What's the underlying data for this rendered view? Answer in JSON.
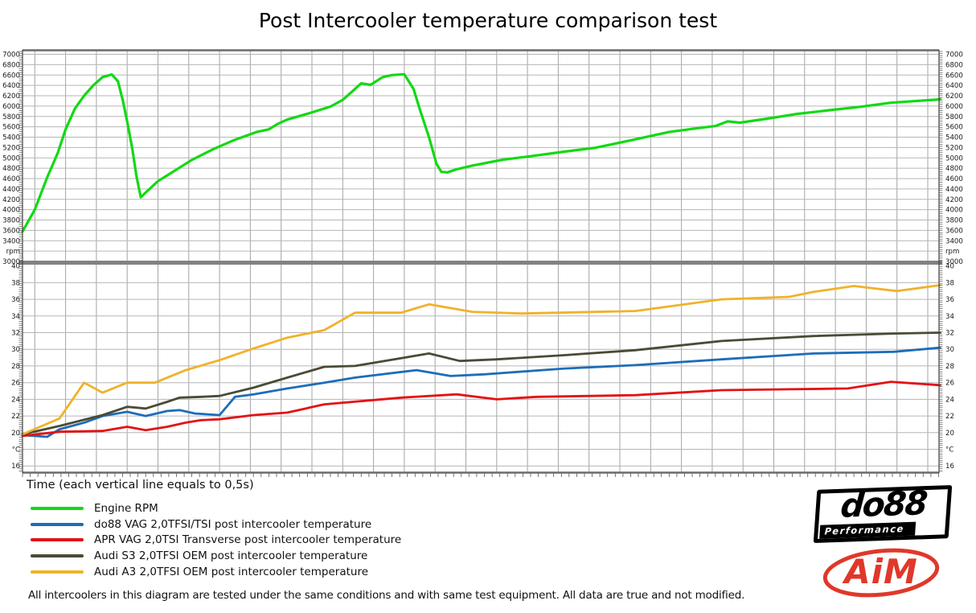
{
  "title": "Post Intercooler temperature comparison test",
  "x_axis_label": "Time (each vertical line equals to 0,5s)",
  "footer_note": "All intercoolers in this diagram are tested under the same conditions and with same test equipment. All data are true and not modified.",
  "logos": {
    "do88_text": "do88",
    "do88_subtext": "Performance",
    "aim_text": "AiM"
  },
  "legend": [
    {
      "label": "Engine RPM",
      "color": "#12D912"
    },
    {
      "label": "do88 VAG 2,0TFSI/TSI post intercooler temperature",
      "color": "#1D6DB8"
    },
    {
      "label": "APR VAG 2,0TSI Transverse post intercooler temperature",
      "color": "#E31114"
    },
    {
      "label": "Audi S3 2,0TFSI OEM post intercooler temperature",
      "color": "#4B4A35"
    },
    {
      "label": "Audi A3 2,0TFSI OEM post intercooler temperature",
      "color": "#F0B229"
    }
  ],
  "chart_data": {
    "type": "line",
    "title": "Post Intercooler temperature comparison test",
    "xlabel": "Time (each vertical line equals to 0,5s)",
    "x_unit": "s",
    "x_range": [
      0,
      14.9
    ],
    "x_gridline_interval_s": 0.5,
    "grid": true,
    "legend_position": "bottom-left",
    "panels": [
      {
        "id": "rpm",
        "ylabel": "rpm",
        "ylim": [
          3000,
          7070
        ],
        "ticks": [
          [
            7000,
            "7000"
          ],
          [
            6800,
            "6800"
          ],
          [
            6600,
            "6600"
          ],
          [
            6400,
            "6400"
          ],
          [
            6200,
            "6200"
          ],
          [
            6000,
            "6000"
          ],
          [
            5800,
            "5800"
          ],
          [
            5600,
            "5600"
          ],
          [
            5400,
            "5400"
          ],
          [
            5200,
            "5200"
          ],
          [
            5000,
            "5000"
          ],
          [
            4800,
            "4800"
          ],
          [
            4600,
            "4600"
          ],
          [
            4400,
            "4400"
          ],
          [
            4200,
            "4200"
          ],
          [
            4000,
            "4000"
          ],
          [
            3800,
            "3800"
          ],
          [
            3600,
            "3600"
          ],
          [
            3400,
            "3400"
          ],
          [
            3200,
            "rpm"
          ],
          [
            3000,
            "3000"
          ]
        ]
      },
      {
        "id": "temp",
        "ylabel": "°C",
        "ylim": [
          15.15,
          40.55
        ],
        "ticks": [
          [
            40,
            "40"
          ],
          [
            38,
            "38"
          ],
          [
            36,
            "36"
          ],
          [
            34,
            "34"
          ],
          [
            32,
            "32"
          ],
          [
            30,
            "30"
          ],
          [
            28,
            "28"
          ],
          [
            26,
            "26"
          ],
          [
            24,
            "24"
          ],
          [
            22,
            "22"
          ],
          [
            20,
            "20"
          ],
          [
            18,
            "°C"
          ],
          [
            16,
            "16"
          ]
        ]
      }
    ],
    "series": [
      {
        "name": "Engine RPM",
        "panel": "rpm",
        "color": "#12D912",
        "width": 3.2,
        "points": [
          [
            0,
            3580
          ],
          [
            0.2,
            4000
          ],
          [
            0.4,
            4620
          ],
          [
            0.57,
            5090
          ],
          [
            0.7,
            5550
          ],
          [
            0.85,
            5950
          ],
          [
            1.0,
            6200
          ],
          [
            1.15,
            6400
          ],
          [
            1.3,
            6560
          ],
          [
            1.45,
            6610
          ],
          [
            1.55,
            6480
          ],
          [
            1.63,
            6100
          ],
          [
            1.7,
            5700
          ],
          [
            1.78,
            5200
          ],
          [
            1.85,
            4650
          ],
          [
            1.92,
            4240
          ],
          [
            2.0,
            4330
          ],
          [
            2.2,
            4550
          ],
          [
            2.4,
            4700
          ],
          [
            2.75,
            4960
          ],
          [
            3.1,
            5170
          ],
          [
            3.45,
            5350
          ],
          [
            3.8,
            5500
          ],
          [
            4.0,
            5550
          ],
          [
            4.15,
            5660
          ],
          [
            4.3,
            5740
          ],
          [
            4.65,
            5860
          ],
          [
            5.0,
            5990
          ],
          [
            5.2,
            6120
          ],
          [
            5.35,
            6280
          ],
          [
            5.5,
            6440
          ],
          [
            5.65,
            6410
          ],
          [
            5.85,
            6560
          ],
          [
            6.0,
            6600
          ],
          [
            6.2,
            6615
          ],
          [
            6.35,
            6330
          ],
          [
            6.45,
            5940
          ],
          [
            6.6,
            5400
          ],
          [
            6.72,
            4890
          ],
          [
            6.8,
            4730
          ],
          [
            6.9,
            4720
          ],
          [
            7.05,
            4780
          ],
          [
            7.3,
            4850
          ],
          [
            7.8,
            4965
          ],
          [
            8.3,
            5040
          ],
          [
            8.8,
            5120
          ],
          [
            9.3,
            5195
          ],
          [
            9.8,
            5320
          ],
          [
            10.5,
            5500
          ],
          [
            11.0,
            5580
          ],
          [
            11.25,
            5615
          ],
          [
            11.45,
            5705
          ],
          [
            11.65,
            5680
          ],
          [
            12.05,
            5750
          ],
          [
            12.55,
            5845
          ],
          [
            13.1,
            5920
          ],
          [
            13.6,
            5985
          ],
          [
            14.1,
            6065
          ],
          [
            14.65,
            6110
          ],
          [
            14.9,
            6130
          ]
        ]
      },
      {
        "name": "do88 VAG 2,0TFSI/TSI post intercooler temperature",
        "panel": "temp",
        "color": "#1D6DB8",
        "width": 2.8,
        "points": [
          [
            0,
            19.7
          ],
          [
            0.4,
            19.5
          ],
          [
            0.6,
            20.4
          ],
          [
            1.0,
            21.2
          ],
          [
            1.3,
            22.0
          ],
          [
            1.7,
            22.5
          ],
          [
            2.0,
            22.0
          ],
          [
            2.35,
            22.6
          ],
          [
            2.55,
            22.7
          ],
          [
            2.8,
            22.3
          ],
          [
            3.2,
            22.1
          ],
          [
            3.45,
            24.3
          ],
          [
            3.75,
            24.6
          ],
          [
            4.3,
            25.3
          ],
          [
            4.9,
            26.0
          ],
          [
            5.4,
            26.6
          ],
          [
            6.4,
            27.5
          ],
          [
            6.95,
            26.8
          ],
          [
            7.5,
            27.0
          ],
          [
            8.8,
            27.7
          ],
          [
            9.95,
            28.1
          ],
          [
            11.35,
            28.8
          ],
          [
            12.85,
            29.5
          ],
          [
            14.15,
            29.7
          ],
          [
            14.9,
            30.2
          ]
        ]
      },
      {
        "name": "APR VAG 2,0TSI Transverse post intercooler temperature",
        "panel": "temp",
        "color": "#E31114",
        "width": 2.8,
        "points": [
          [
            0,
            19.6
          ],
          [
            0.6,
            20.1
          ],
          [
            1.3,
            20.2
          ],
          [
            1.7,
            20.7
          ],
          [
            2.0,
            20.3
          ],
          [
            2.35,
            20.7
          ],
          [
            2.65,
            21.2
          ],
          [
            2.9,
            21.5
          ],
          [
            3.2,
            21.6
          ],
          [
            3.75,
            22.1
          ],
          [
            4.3,
            22.4
          ],
          [
            4.9,
            23.4
          ],
          [
            6.15,
            24.2
          ],
          [
            7.05,
            24.6
          ],
          [
            7.7,
            24.0
          ],
          [
            8.35,
            24.3
          ],
          [
            9.95,
            24.5
          ],
          [
            11.35,
            25.1
          ],
          [
            12.45,
            25.2
          ],
          [
            13.4,
            25.3
          ],
          [
            14.1,
            26.1
          ],
          [
            14.9,
            25.7
          ]
        ]
      },
      {
        "name": "Audi S3 2,0TFSI OEM post intercooler temperature",
        "panel": "temp",
        "color": "#4B4A35",
        "width": 2.8,
        "points": [
          [
            0,
            19.8
          ],
          [
            0.6,
            20.8
          ],
          [
            1.3,
            22.1
          ],
          [
            1.7,
            23.1
          ],
          [
            2.0,
            22.9
          ],
          [
            2.35,
            23.7
          ],
          [
            2.55,
            24.2
          ],
          [
            2.9,
            24.3
          ],
          [
            3.2,
            24.4
          ],
          [
            3.75,
            25.4
          ],
          [
            4.3,
            26.6
          ],
          [
            4.9,
            27.9
          ],
          [
            5.4,
            28.0
          ],
          [
            6.6,
            29.5
          ],
          [
            7.1,
            28.6
          ],
          [
            7.7,
            28.8
          ],
          [
            8.8,
            29.3
          ],
          [
            9.95,
            29.9
          ],
          [
            11.35,
            31.0
          ],
          [
            12.85,
            31.6
          ],
          [
            14.15,
            31.9
          ],
          [
            14.9,
            32.0
          ]
        ]
      },
      {
        "name": "Audi A3 2,0TFSI OEM post intercooler temperature",
        "panel": "temp",
        "color": "#F0B229",
        "width": 2.8,
        "points": [
          [
            0,
            19.8
          ],
          [
            0.6,
            21.7
          ],
          [
            1.0,
            26.0
          ],
          [
            1.3,
            24.8
          ],
          [
            1.7,
            26.0
          ],
          [
            2.15,
            26.0
          ],
          [
            2.65,
            27.5
          ],
          [
            3.2,
            28.7
          ],
          [
            3.75,
            30.1
          ],
          [
            4.3,
            31.4
          ],
          [
            4.9,
            32.3
          ],
          [
            5.4,
            34.4
          ],
          [
            6.15,
            34.4
          ],
          [
            6.6,
            35.4
          ],
          [
            7.3,
            34.5
          ],
          [
            8.1,
            34.3
          ],
          [
            9.95,
            34.6
          ],
          [
            11.35,
            36.0
          ],
          [
            12.45,
            36.3
          ],
          [
            12.85,
            36.9
          ],
          [
            13.5,
            37.6
          ],
          [
            14.2,
            37.0
          ],
          [
            14.9,
            37.7
          ]
        ]
      }
    ]
  }
}
